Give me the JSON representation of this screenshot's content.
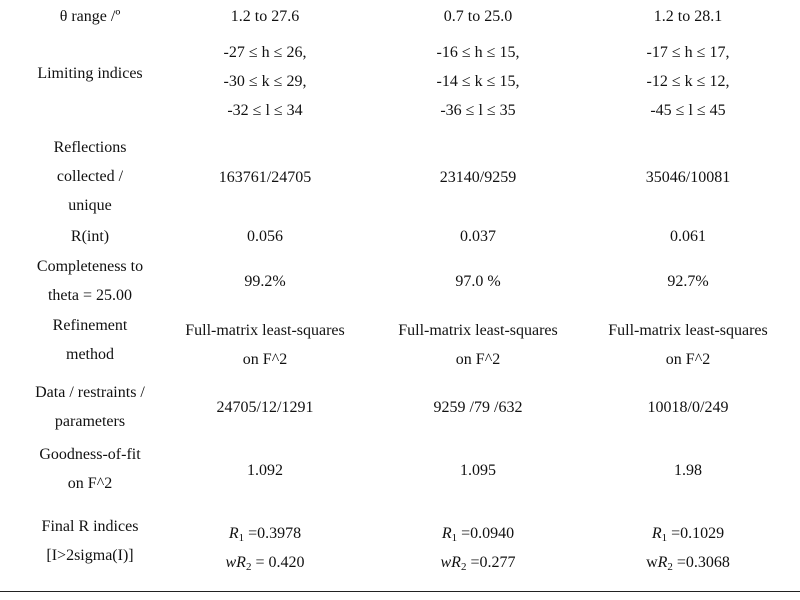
{
  "rows": [
    {
      "label": [
        "θ range /º"
      ],
      "values": [
        [
          "1.2 to 27.6"
        ],
        [
          "0.7 to 25.0"
        ],
        [
          "1.2 to 28.1"
        ]
      ]
    },
    {
      "label": [
        "Limiting indices"
      ],
      "values": [
        [
          "-27 ≤ h ≤ 26,",
          "-30 ≤ k ≤ 29,",
          "-32 ≤ l ≤ 34"
        ],
        [
          "-16 ≤ h ≤ 15,",
          "-14 ≤ k ≤ 15,",
          "-36 ≤ l ≤ 35"
        ],
        [
          "-17 ≤ h ≤ 17,",
          "-12 ≤ k ≤ 12,",
          "-45 ≤ l ≤ 45"
        ]
      ]
    },
    {
      "label": [
        "Reflections",
        "collected /",
        "unique"
      ],
      "values": [
        [
          "163761/24705"
        ],
        [
          "23140/9259"
        ],
        [
          "35046/10081"
        ]
      ]
    },
    {
      "label": [
        "R(int)"
      ],
      "values": [
        [
          "0.056"
        ],
        [
          "0.037"
        ],
        [
          "0.061"
        ]
      ]
    },
    {
      "label": [
        "Completeness to",
        "theta = 25.00"
      ],
      "values": [
        [
          "99.2%"
        ],
        [
          "97.0 %"
        ],
        [
          "92.7%"
        ]
      ]
    },
    {
      "label": [
        "Refinement",
        "method"
      ],
      "values": [
        [
          "Full-matrix least-squares",
          "on F^2"
        ],
        [
          "Full-matrix least-squares",
          "on F^2"
        ],
        [
          "Full-matrix least-squares",
          "on F^2"
        ]
      ]
    },
    {
      "label": [
        "Data / restraints /",
        "parameters"
      ],
      "values": [
        [
          "24705/12/1291"
        ],
        [
          "9259 /79 /632"
        ],
        [
          "10018/0/249"
        ]
      ]
    },
    {
      "label": [
        "Goodness-of-fit",
        "on F^2"
      ],
      "values": [
        [
          "1.092"
        ],
        [
          "1.095"
        ],
        [
          "1.98"
        ]
      ]
    },
    {
      "label": [
        "Final R indices",
        "[I>2sigma(I)]"
      ],
      "r_values": [
        {
          "r1": "=0.3978",
          "wr2": "= 0.420",
          "wr2_prefix": "w"
        },
        {
          "r1": "=0.0940",
          "wr2": "=0.277",
          "wr2_prefix": "w"
        },
        {
          "r1": "=0.1029",
          "wr2": "=0.3068",
          "wr2_prefix": "w"
        }
      ]
    }
  ]
}
